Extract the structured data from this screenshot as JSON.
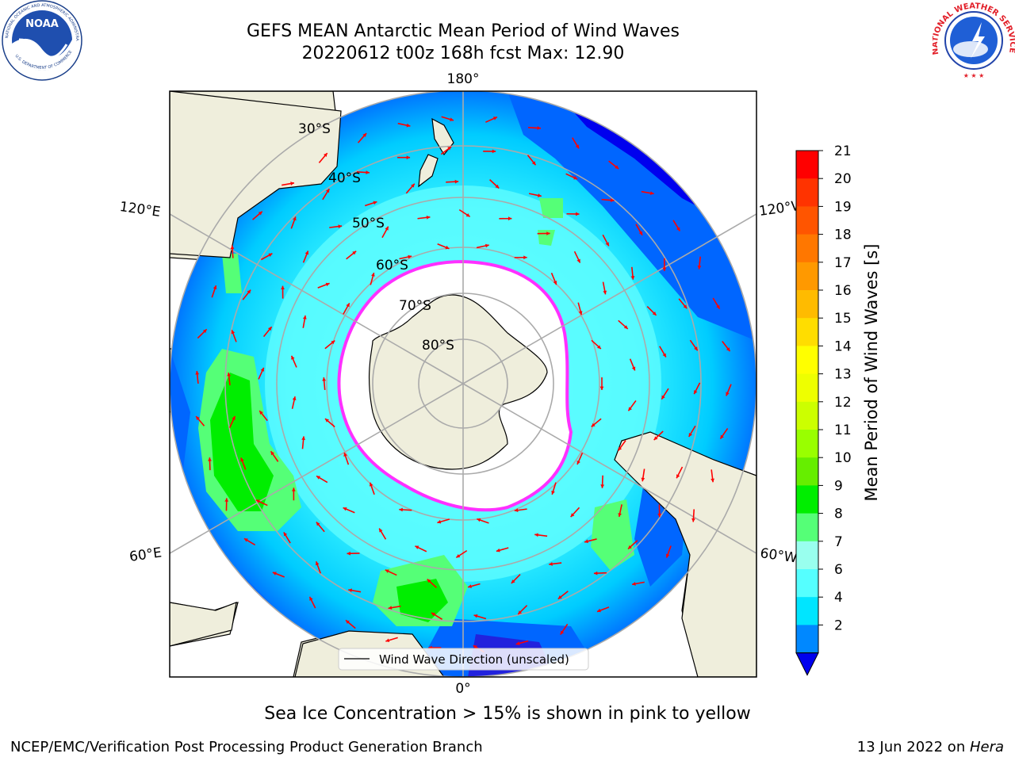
{
  "header": {
    "title": "GEFS MEAN Antarctic Mean Period of Wind Waves",
    "subtitle": "20220612 t00z 168h fcst   Max: 12.90"
  },
  "logos": {
    "left": {
      "name": "NOAA",
      "ring_text": "NATIONAL OCEANIC AND ATMOSPHERIC ADMINISTRATION",
      "bottom_text": "U.S. DEPARTMENT OF COMMERCE"
    },
    "right": {
      "ring_text": "NATIONAL WEATHER SERVICE"
    }
  },
  "map": {
    "projection": "south-polar-stereographic",
    "lon_labels": {
      "top": "180°",
      "bottom": "0°",
      "upper_left": "120°E",
      "upper_right": "120°W",
      "lower_left": "60°E",
      "lower_right": "60°W"
    },
    "lat_labels": [
      "30°S",
      "40°S",
      "50°S",
      "60°S",
      "70°S",
      "80°S"
    ],
    "legend_label": "Wind Wave Direction (unscaled)",
    "arrow_color": "#ff0000",
    "land_color": "#efeedc",
    "ice_edge_color": "#ff30ff"
  },
  "colorbar": {
    "label": "Mean Period of Wind Waves [s]",
    "ticks": [
      "21",
      "20",
      "19",
      "18",
      "17",
      "16",
      "15",
      "14",
      "13",
      "12",
      "11",
      "10",
      "9",
      "8",
      "7",
      "6",
      "4",
      "2"
    ],
    "colors": [
      "#ff0000",
      "#ff3300",
      "#ff5500",
      "#ff7700",
      "#ff9900",
      "#ffbb00",
      "#ffdd00",
      "#ffff00",
      "#eeff00",
      "#ccff00",
      "#99ff00",
      "#66ee00",
      "#00ee00",
      "#55ff77",
      "#99ffee",
      "#55ffff",
      "#00e5ff",
      "#0088ff",
      "#0000ee"
    ]
  },
  "footer": {
    "sea_ice_note": "Sea Ice Concentration > 15% is shown in pink to yellow",
    "left": "NCEP/EMC/Verification Post Processing Product Generation Branch",
    "right_prefix": "13 Jun 2022 on ",
    "right_machine": "Hera"
  }
}
